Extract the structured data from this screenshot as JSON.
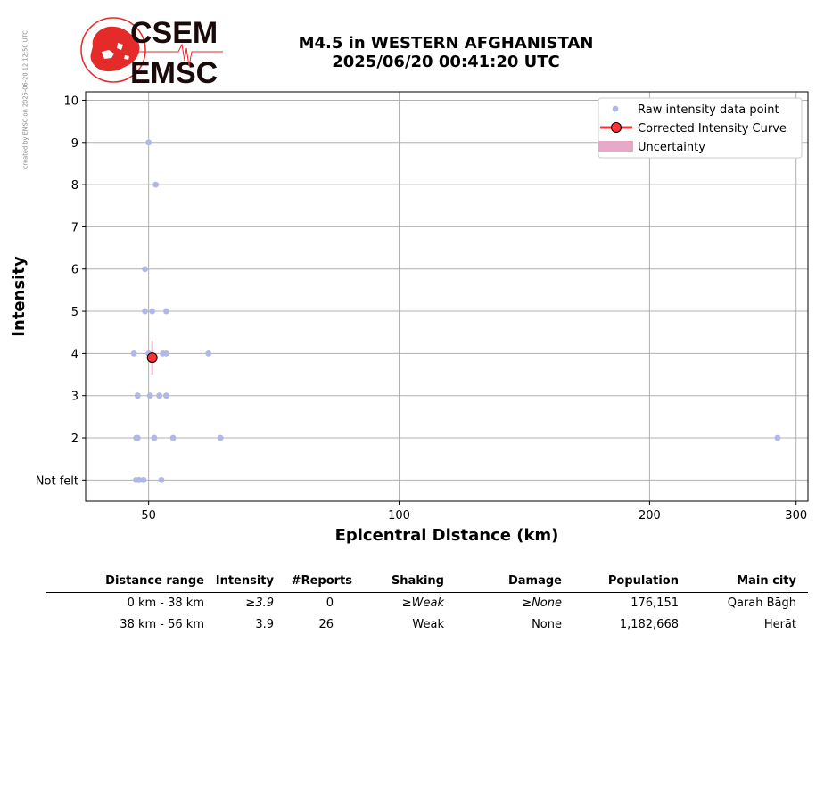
{
  "side_note": "created by EMSC on 2025-06-20 12:12:50 UTC",
  "logo": {
    "line1": "CSEM",
    "line2": "EMSC",
    "color": "#e52a2a"
  },
  "title": {
    "line1": "M4.5 in WESTERN AFGHANISTAN",
    "line2": "2025/06/20 00:41:20 UTC"
  },
  "chart_data": {
    "type": "scatter",
    "title": "M4.5 in WESTERN AFGHANISTAN 2025/06/20 00:41:20 UTC",
    "xlabel": "Epicentral Distance (km)",
    "ylabel": "Intensity",
    "x_scale": "log",
    "xlim": [
      42,
      310
    ],
    "ylim": [
      0.5,
      10.2
    ],
    "x_ticks": [
      50,
      100,
      200,
      300
    ],
    "y_ticks": [
      1,
      2,
      3,
      4,
      5,
      6,
      7,
      8,
      9,
      10
    ],
    "y_tick_labels": [
      "Not felt",
      "2",
      "3",
      "4",
      "5",
      "6",
      "7",
      "8",
      "9",
      "10"
    ],
    "grid": true,
    "legend_position": "top-right",
    "legend": [
      "Raw intensity data point",
      "Corrected Intensity Curve",
      "Uncertainty"
    ],
    "colors": {
      "raw": "#b0b8e6",
      "curve": "#ff3333",
      "uncertainty": "#e8a8c8"
    },
    "series": [
      {
        "name": "Raw intensity data point",
        "points": [
          [
            50,
            9
          ],
          [
            51,
            8
          ],
          [
            49.5,
            6
          ],
          [
            49.5,
            5
          ],
          [
            50.5,
            5
          ],
          [
            52.5,
            5
          ],
          [
            48,
            4
          ],
          [
            50,
            4
          ],
          [
            52,
            4
          ],
          [
            52.5,
            4
          ],
          [
            59,
            4
          ],
          [
            48.5,
            3
          ],
          [
            50.2,
            3
          ],
          [
            51.5,
            3
          ],
          [
            52.5,
            3
          ],
          [
            48.3,
            2
          ],
          [
            48.5,
            2
          ],
          [
            50.8,
            2
          ],
          [
            53.5,
            2
          ],
          [
            61,
            2
          ],
          [
            285,
            2
          ],
          [
            48.3,
            1
          ],
          [
            48.7,
            1
          ],
          [
            49.3,
            1
          ],
          [
            51.8,
            1
          ]
        ]
      },
      {
        "name": "Corrected Intensity Curve",
        "points": [
          [
            50.5,
            3.9
          ]
        ],
        "uncertainty": [
          3.5,
          4.3
        ]
      }
    ]
  },
  "table": {
    "headers": [
      "Distance range",
      "Intensity",
      "#Reports",
      "Shaking",
      "Damage",
      "Population",
      "Main city"
    ],
    "rows": [
      {
        "range": "0 km -   38 km",
        "intensity": "≥3.9",
        "reports": "0",
        "shaking": "≥Weak",
        "damage": "≥None",
        "population": "176,151",
        "city": "Qarah Bāgh",
        "italic": true
      },
      {
        "range": "38 km -   56 km",
        "intensity": "3.9",
        "reports": "26",
        "shaking": "Weak",
        "damage": "None",
        "population": "1,182,668",
        "city": "Herāt",
        "italic": false
      }
    ]
  }
}
